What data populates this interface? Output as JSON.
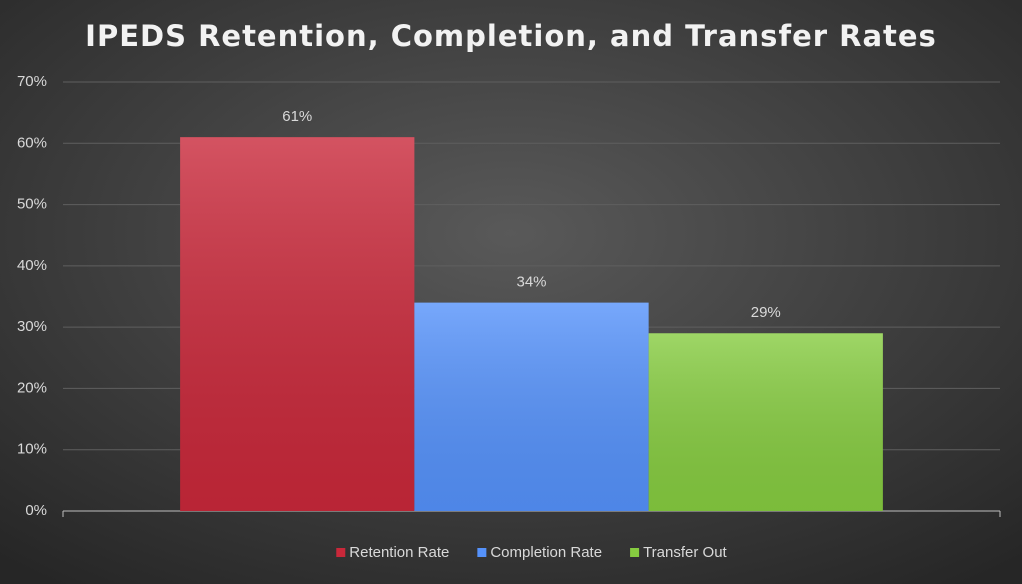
{
  "chart_data": {
    "type": "bar",
    "title": "IPEDS Retention, Completion, and Transfer Rates",
    "categories": [
      null
    ],
    "series": [
      {
        "name": "Retention Rate",
        "color": "#c9283a",
        "values": [
          61
        ],
        "value_labels": [
          "61%"
        ]
      },
      {
        "name": "Completion Rate",
        "color": "#5592fb",
        "values": [
          34
        ],
        "value_labels": [
          "34%"
        ]
      },
      {
        "name": "Transfer Out",
        "color": "#86cc40",
        "values": [
          29
        ],
        "value_labels": [
          "29%"
        ]
      }
    ],
    "ylim": [
      0,
      70
    ],
    "yticks": [
      {
        "value": 0,
        "label": "0%"
      },
      {
        "value": 10,
        "label": "10%"
      },
      {
        "value": 20,
        "label": "20%"
      },
      {
        "value": 30,
        "label": "30%"
      },
      {
        "value": 40,
        "label": "40%"
      },
      {
        "value": 50,
        "label": "50%"
      },
      {
        "value": 60,
        "label": "60%"
      },
      {
        "value": 70,
        "label": "70%"
      }
    ],
    "grid": true,
    "legend": "bottom"
  }
}
